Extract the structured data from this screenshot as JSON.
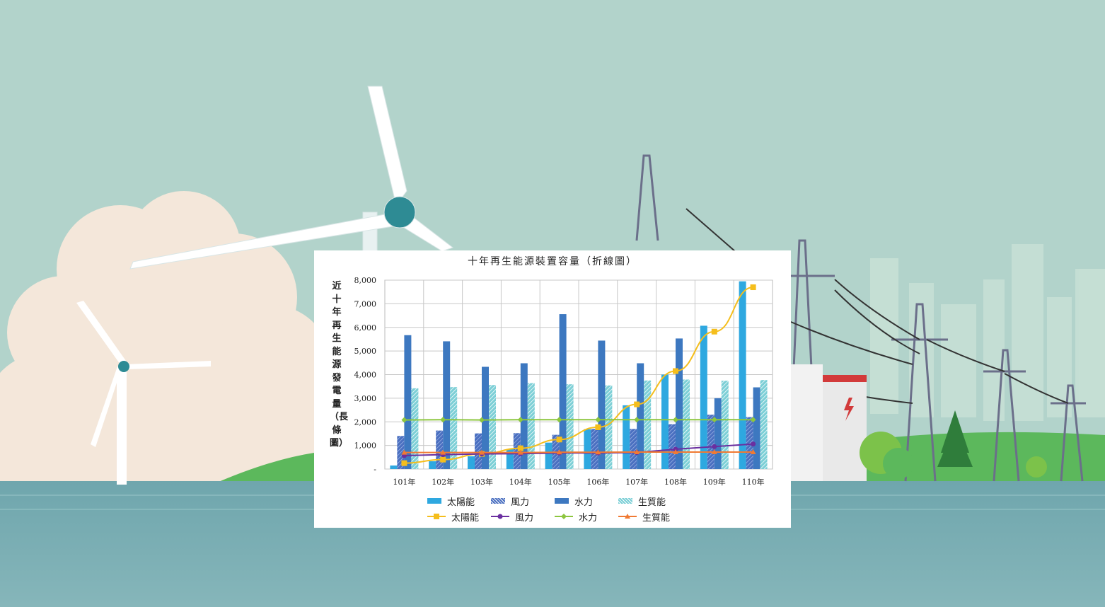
{
  "chart_data": {
    "type": "bar",
    "title": "十年再生能源裝置容量（折線圖）",
    "ylabel": "近十年再生能源發電量（長條圖）",
    "xlabel": "",
    "ylim": [
      0,
      8000
    ],
    "yticks": [
      "-",
      "1,000",
      "2,000",
      "3,000",
      "4,000",
      "5,000",
      "6,000",
      "7,000",
      "8,000"
    ],
    "categories": [
      "101年",
      "102年",
      "103年",
      "104年",
      "105年",
      "106年",
      "107年",
      "108年",
      "109年",
      "110年"
    ],
    "bar_series": [
      {
        "name": "太陽能",
        "color": "#2ea8e0",
        "pattern": "solid",
        "values": [
          150,
          330,
          540,
          850,
          1120,
          1690,
          2700,
          4000,
          6070,
          7950
        ]
      },
      {
        "name": "風力",
        "color": "#4a6fc0",
        "pattern": "diagonal",
        "values": [
          1400,
          1630,
          1510,
          1520,
          1450,
          1700,
          1700,
          1900,
          2300,
          2200
        ]
      },
      {
        "name": "水力",
        "color": "#3d78c0",
        "pattern": "solid",
        "values": [
          5670,
          5410,
          4330,
          4480,
          6560,
          5440,
          4480,
          5530,
          3000,
          3460
        ]
      },
      {
        "name": "生質能",
        "color": "#7ccfd6",
        "pattern": "diagonal",
        "values": [
          3420,
          3470,
          3560,
          3640,
          3590,
          3540,
          3750,
          3790,
          3740,
          3770
        ]
      }
    ],
    "line_series": [
      {
        "name": "太陽能",
        "color": "#f5be1c",
        "marker": "square",
        "values": [
          250,
          400,
          640,
          880,
          1250,
          1770,
          2740,
          4150,
          5820,
          7700
        ]
      },
      {
        "name": "風力",
        "color": "#6a2fa0",
        "marker": "circle",
        "values": [
          570,
          610,
          640,
          650,
          680,
          680,
          700,
          840,
          950,
          1060
        ]
      },
      {
        "name": "水力",
        "color": "#8dc63f",
        "marker": "diamond",
        "values": [
          2080,
          2090,
          2080,
          2090,
          2090,
          2090,
          2090,
          2090,
          2090,
          2090
        ]
      },
      {
        "name": "生質能",
        "color": "#f07a33",
        "marker": "triangle",
        "values": [
          700,
          700,
          700,
          700,
          710,
          710,
          720,
          720,
          720,
          720
        ]
      }
    ],
    "legend": {
      "position": "bottom"
    }
  },
  "colors": {
    "sky": "#b2d3cb",
    "water": "#7aaeb4",
    "grass": "#5cb85c"
  }
}
